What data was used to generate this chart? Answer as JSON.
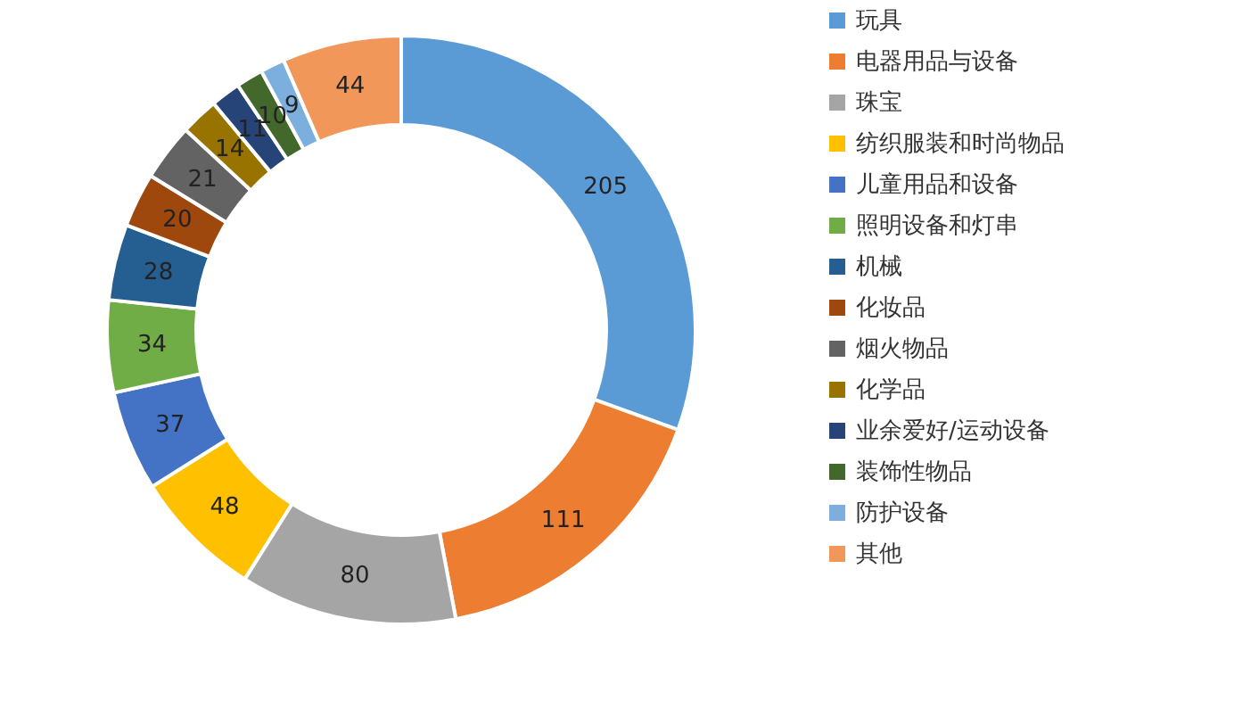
{
  "chart_data": {
    "type": "donut",
    "categories": [
      "玩具",
      "电器用品与设备",
      "珠宝",
      "纺织服装和时尚物品",
      "儿童用品和设备",
      "照明设备和灯串",
      "机械",
      "化妆品",
      "烟火物品",
      "化学品",
      "业余爱好/运动设备",
      "装饰性物品",
      "防护设备",
      "其他"
    ],
    "values": [
      205,
      111,
      80,
      48,
      37,
      34,
      28,
      20,
      21,
      14,
      11,
      10,
      9,
      44
    ],
    "colors": [
      "#5b9bd5",
      "#ed7d31",
      "#a5a5a5",
      "#ffc000",
      "#4472c4",
      "#70ad47",
      "#255e91",
      "#9e480e",
      "#636363",
      "#997300",
      "#264478",
      "#43682b",
      "#7cafdd",
      "#f1975a"
    ],
    "data_labels": true,
    "legend": "right"
  }
}
